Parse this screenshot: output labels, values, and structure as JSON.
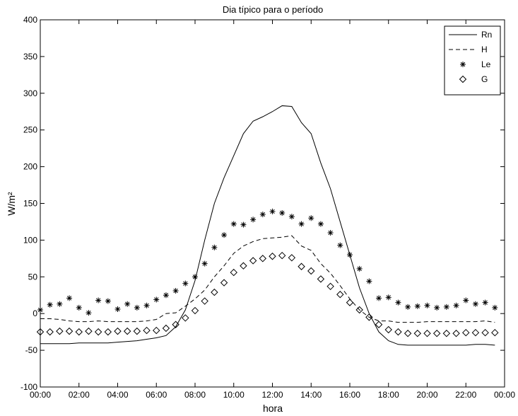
{
  "chart_data": {
    "type": "line",
    "title": "Dia típico para o período",
    "xlabel": "hora",
    "ylabel": "W/m²",
    "xlim": [
      0,
      24
    ],
    "ylim": [
      -100,
      400
    ],
    "x_ticks": [
      0,
      2,
      4,
      6,
      8,
      10,
      12,
      14,
      16,
      18,
      20,
      22,
      24
    ],
    "x_tick_labels": [
      "00:00",
      "02:00",
      "04:00",
      "06:00",
      "08:00",
      "10:00",
      "12:00",
      "14:00",
      "16:00",
      "18:00",
      "20:00",
      "22:00",
      "00:00"
    ],
    "y_ticks": [
      -100,
      -50,
      0,
      50,
      100,
      150,
      200,
      250,
      300,
      350,
      400
    ],
    "grid": false,
    "legend_position": "top-right",
    "series": [
      {
        "name": "Rn",
        "style": "solid-line",
        "color": "#000000",
        "x": [
          0,
          0.5,
          1,
          1.5,
          2,
          2.5,
          3,
          3.5,
          4,
          4.5,
          5,
          5.5,
          6,
          6.5,
          7,
          7.5,
          8,
          8.5,
          9,
          9.5,
          10,
          10.5,
          11,
          11.5,
          12,
          12.5,
          13,
          13.5,
          14,
          14.5,
          15,
          15.5,
          16,
          16.5,
          17,
          17.5,
          18,
          18.5,
          19,
          19.5,
          20,
          20.5,
          21,
          21.5,
          22,
          22.5,
          23,
          23.5
        ],
        "y": [
          -41,
          -41,
          -41,
          -41,
          -40,
          -40,
          -40,
          -40,
          -39,
          -38,
          -37,
          -35,
          -33,
          -30,
          -18,
          5,
          45,
          100,
          150,
          185,
          215,
          245,
          262,
          268,
          275,
          283,
          282,
          260,
          245,
          205,
          170,
          125,
          80,
          35,
          0,
          -25,
          -37,
          -42,
          -43,
          -43,
          -43,
          -43,
          -43,
          -43,
          -43,
          -42,
          -42,
          -43
        ]
      },
      {
        "name": "H",
        "style": "dashed-line",
        "color": "#000000",
        "x": [
          0,
          0.5,
          1,
          1.5,
          2,
          2.5,
          3,
          3.5,
          4,
          4.5,
          5,
          5.5,
          6,
          6.5,
          7,
          7.5,
          8,
          8.5,
          9,
          9.5,
          10,
          10.5,
          11,
          11.5,
          12,
          12.5,
          13,
          13.5,
          14,
          14.5,
          15,
          15.5,
          16,
          16.5,
          17,
          17.5,
          18,
          18.5,
          19,
          19.5,
          20,
          20.5,
          21,
          21.5,
          22,
          22.5,
          23,
          23.5
        ],
        "y": [
          -7,
          -7,
          -8,
          -10,
          -11,
          -11,
          -10,
          -11,
          -11,
          -11,
          -11,
          -10,
          -8,
          0,
          1,
          10,
          20,
          32,
          50,
          65,
          82,
          92,
          98,
          102,
          103,
          104,
          106,
          92,
          86,
          68,
          55,
          38,
          20,
          5,
          -5,
          -10,
          -10,
          -12,
          -12,
          -12,
          -11,
          -11,
          -11,
          -11,
          -11,
          -11,
          -10,
          -12
        ]
      },
      {
        "name": "Le",
        "style": "asterisk-markers",
        "color": "#000000",
        "x": [
          0,
          0.5,
          1,
          1.5,
          2,
          2.5,
          3,
          3.5,
          4,
          4.5,
          5,
          5.5,
          6,
          6.5,
          7,
          7.5,
          8,
          8.5,
          9,
          9.5,
          10,
          10.5,
          11,
          11.5,
          12,
          12.5,
          13,
          13.5,
          14,
          14.5,
          15,
          15.5,
          16,
          16.5,
          17,
          17.5,
          18,
          18.5,
          19,
          19.5,
          20,
          20.5,
          21,
          21.5,
          22,
          22.5,
          23,
          23.5
        ],
        "y": [
          5,
          12,
          13,
          21,
          8,
          1,
          18,
          17,
          6,
          13,
          8,
          11,
          19,
          25,
          31,
          41,
          50,
          68,
          90,
          107,
          122,
          121,
          128,
          135,
          139,
          137,
          132,
          122,
          130,
          122,
          110,
          93,
          80,
          61,
          44,
          21,
          22,
          15,
          9,
          10,
          11,
          8,
          9,
          11,
          18,
          13,
          15,
          8
        ]
      },
      {
        "name": "G",
        "style": "diamond-markers",
        "color": "#000000",
        "x": [
          0,
          0.5,
          1,
          1.5,
          2,
          2.5,
          3,
          3.5,
          4,
          4.5,
          5,
          5.5,
          6,
          6.5,
          7,
          7.5,
          8,
          8.5,
          9,
          9.5,
          10,
          10.5,
          11,
          11.5,
          12,
          12.5,
          13,
          13.5,
          14,
          14.5,
          15,
          15.5,
          16,
          16.5,
          17,
          17.5,
          18,
          18.5,
          19,
          19.5,
          20,
          20.5,
          21,
          21.5,
          22,
          22.5,
          23,
          23.5
        ],
        "y": [
          -25,
          -25,
          -24,
          -24,
          -25,
          -24,
          -25,
          -25,
          -24,
          -24,
          -24,
          -23,
          -23,
          -20,
          -15,
          -6,
          4,
          17,
          29,
          42,
          56,
          65,
          72,
          75,
          78,
          79,
          76,
          64,
          58,
          47,
          37,
          26,
          15,
          5,
          -5,
          -15,
          -22,
          -25,
          -27,
          -27,
          -27,
          -27,
          -27,
          -27,
          -26,
          -26,
          -26,
          -26
        ]
      }
    ]
  }
}
